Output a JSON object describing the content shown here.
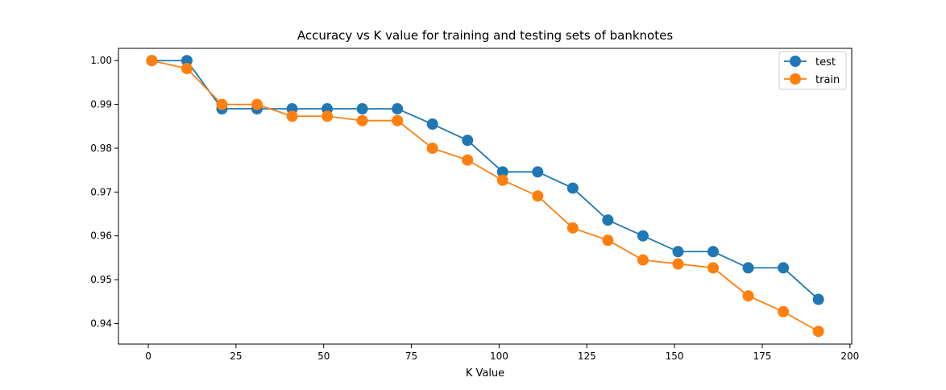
{
  "chart_data": {
    "type": "line",
    "title": "Accuracy vs K value for training and testing sets of banknotes",
    "xlabel": "K Value",
    "ylabel": "",
    "xlim": [
      -8.5,
      200.5
    ],
    "ylim": [
      0.9353,
      1.0028
    ],
    "x_ticks": [
      0,
      25,
      50,
      75,
      100,
      125,
      150,
      175,
      200
    ],
    "x_tick_labels": [
      "0",
      "25",
      "50",
      "75",
      "100",
      "125",
      "150",
      "175",
      "200"
    ],
    "y_ticks": [
      0.94,
      0.95,
      0.96,
      0.97,
      0.98,
      0.99,
      1.0
    ],
    "y_tick_labels": [
      "0.94",
      "0.95",
      "0.96",
      "0.97",
      "0.98",
      "0.99",
      "1.00"
    ],
    "grid": false,
    "legend_position": "top-right",
    "marker": "circle",
    "x": [
      1,
      11,
      21,
      31,
      41,
      51,
      61,
      71,
      81,
      91,
      101,
      111,
      121,
      131,
      141,
      151,
      161,
      171,
      181,
      191
    ],
    "series": [
      {
        "name": "test",
        "color": "#1f77b4",
        "values": [
          1.0,
          1.0,
          0.989,
          0.989,
          0.989,
          0.989,
          0.989,
          0.989,
          0.9855,
          0.9818,
          0.9746,
          0.9746,
          0.9709,
          0.9636,
          0.96,
          0.9564,
          0.9564,
          0.9527,
          0.9527,
          0.9455
        ]
      },
      {
        "name": "train",
        "color": "#ff7f0e",
        "values": [
          1.0,
          0.9982,
          0.99,
          0.99,
          0.9873,
          0.9873,
          0.9863,
          0.9863,
          0.98,
          0.9773,
          0.9727,
          0.9691,
          0.9618,
          0.959,
          0.9545,
          0.9536,
          0.9527,
          0.9463,
          0.9427,
          0.9382
        ]
      }
    ]
  }
}
